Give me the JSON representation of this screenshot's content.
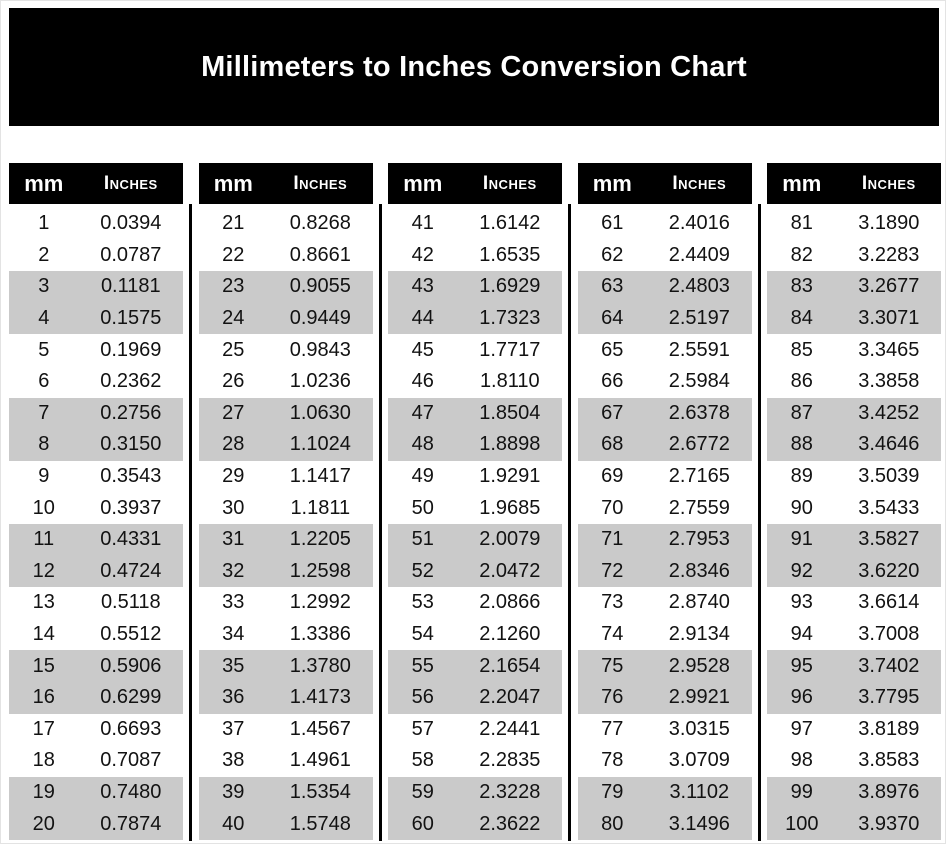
{
  "title": "Millimeters to Inches Conversion Chart",
  "table": {
    "header": {
      "mm": "mm",
      "inches": "Inches"
    },
    "groups": [
      {
        "start_index": 0,
        "count": 20
      },
      {
        "start_index": 20,
        "count": 20
      },
      {
        "start_index": 40,
        "count": 20
      },
      {
        "start_index": 60,
        "count": 20
      },
      {
        "start_index": 80,
        "count": 20
      }
    ],
    "shading_pattern": "pairs-of-two-rows-alternate-white-gray"
  },
  "chart_data": {
    "type": "table",
    "title": "Millimeters to Inches Conversion Chart",
    "columns": [
      "mm",
      "Inches"
    ],
    "mm": [
      1,
      2,
      3,
      4,
      5,
      6,
      7,
      8,
      9,
      10,
      11,
      12,
      13,
      14,
      15,
      16,
      17,
      18,
      19,
      20,
      21,
      22,
      23,
      24,
      25,
      26,
      27,
      28,
      29,
      30,
      31,
      32,
      33,
      34,
      35,
      36,
      37,
      38,
      39,
      40,
      41,
      42,
      43,
      44,
      45,
      46,
      47,
      48,
      49,
      50,
      51,
      52,
      53,
      54,
      55,
      56,
      57,
      58,
      59,
      60,
      61,
      62,
      63,
      64,
      65,
      66,
      67,
      68,
      69,
      70,
      71,
      72,
      73,
      74,
      75,
      76,
      77,
      78,
      79,
      80,
      81,
      82,
      83,
      84,
      85,
      86,
      87,
      88,
      89,
      90,
      91,
      92,
      93,
      94,
      95,
      96,
      97,
      98,
      99,
      100
    ],
    "inches": [
      "0.0394",
      "0.0787",
      "0.1181",
      "0.1575",
      "0.1969",
      "0.2362",
      "0.2756",
      "0.3150",
      "0.3543",
      "0.3937",
      "0.4331",
      "0.4724",
      "0.5118",
      "0.5512",
      "0.5906",
      "0.6299",
      "0.6693",
      "0.7087",
      "0.7480",
      "0.7874",
      "0.8268",
      "0.8661",
      "0.9055",
      "0.9449",
      "0.9843",
      "1.0236",
      "1.0630",
      "1.1024",
      "1.1417",
      "1.1811",
      "1.2205",
      "1.2598",
      "1.2992",
      "1.3386",
      "1.3780",
      "1.4173",
      "1.4567",
      "1.4961",
      "1.5354",
      "1.5748",
      "1.6142",
      "1.6535",
      "1.6929",
      "1.7323",
      "1.7717",
      "1.8110",
      "1.8504",
      "1.8898",
      "1.9291",
      "1.9685",
      "2.0079",
      "2.0472",
      "2.0866",
      "2.1260",
      "2.1654",
      "2.2047",
      "2.2441",
      "2.2835",
      "2.3228",
      "2.3622",
      "2.4016",
      "2.4409",
      "2.4803",
      "2.5197",
      "2.5591",
      "2.5984",
      "2.6378",
      "2.6772",
      "2.7165",
      "2.7559",
      "2.7953",
      "2.8346",
      "2.8740",
      "2.9134",
      "2.9528",
      "2.9921",
      "3.0315",
      "3.0709",
      "3.1102",
      "3.1496",
      "3.1890",
      "3.2283",
      "3.2677",
      "3.3071",
      "3.3465",
      "3.3858",
      "3.4252",
      "3.4646",
      "3.5039",
      "3.5433",
      "3.5827",
      "3.6220",
      "3.6614",
      "3.7008",
      "3.7402",
      "3.7795",
      "3.8189",
      "3.8583",
      "3.8976",
      "3.9370"
    ]
  },
  "colors": {
    "banner_bg": "#000000",
    "banner_text": "#ffffff",
    "header_bg": "#000000",
    "header_text": "#ffffff",
    "row_alt_bg": "#cacaca",
    "row_text": "#121212",
    "divider": "#000000",
    "page_bg": "#ffffff"
  }
}
